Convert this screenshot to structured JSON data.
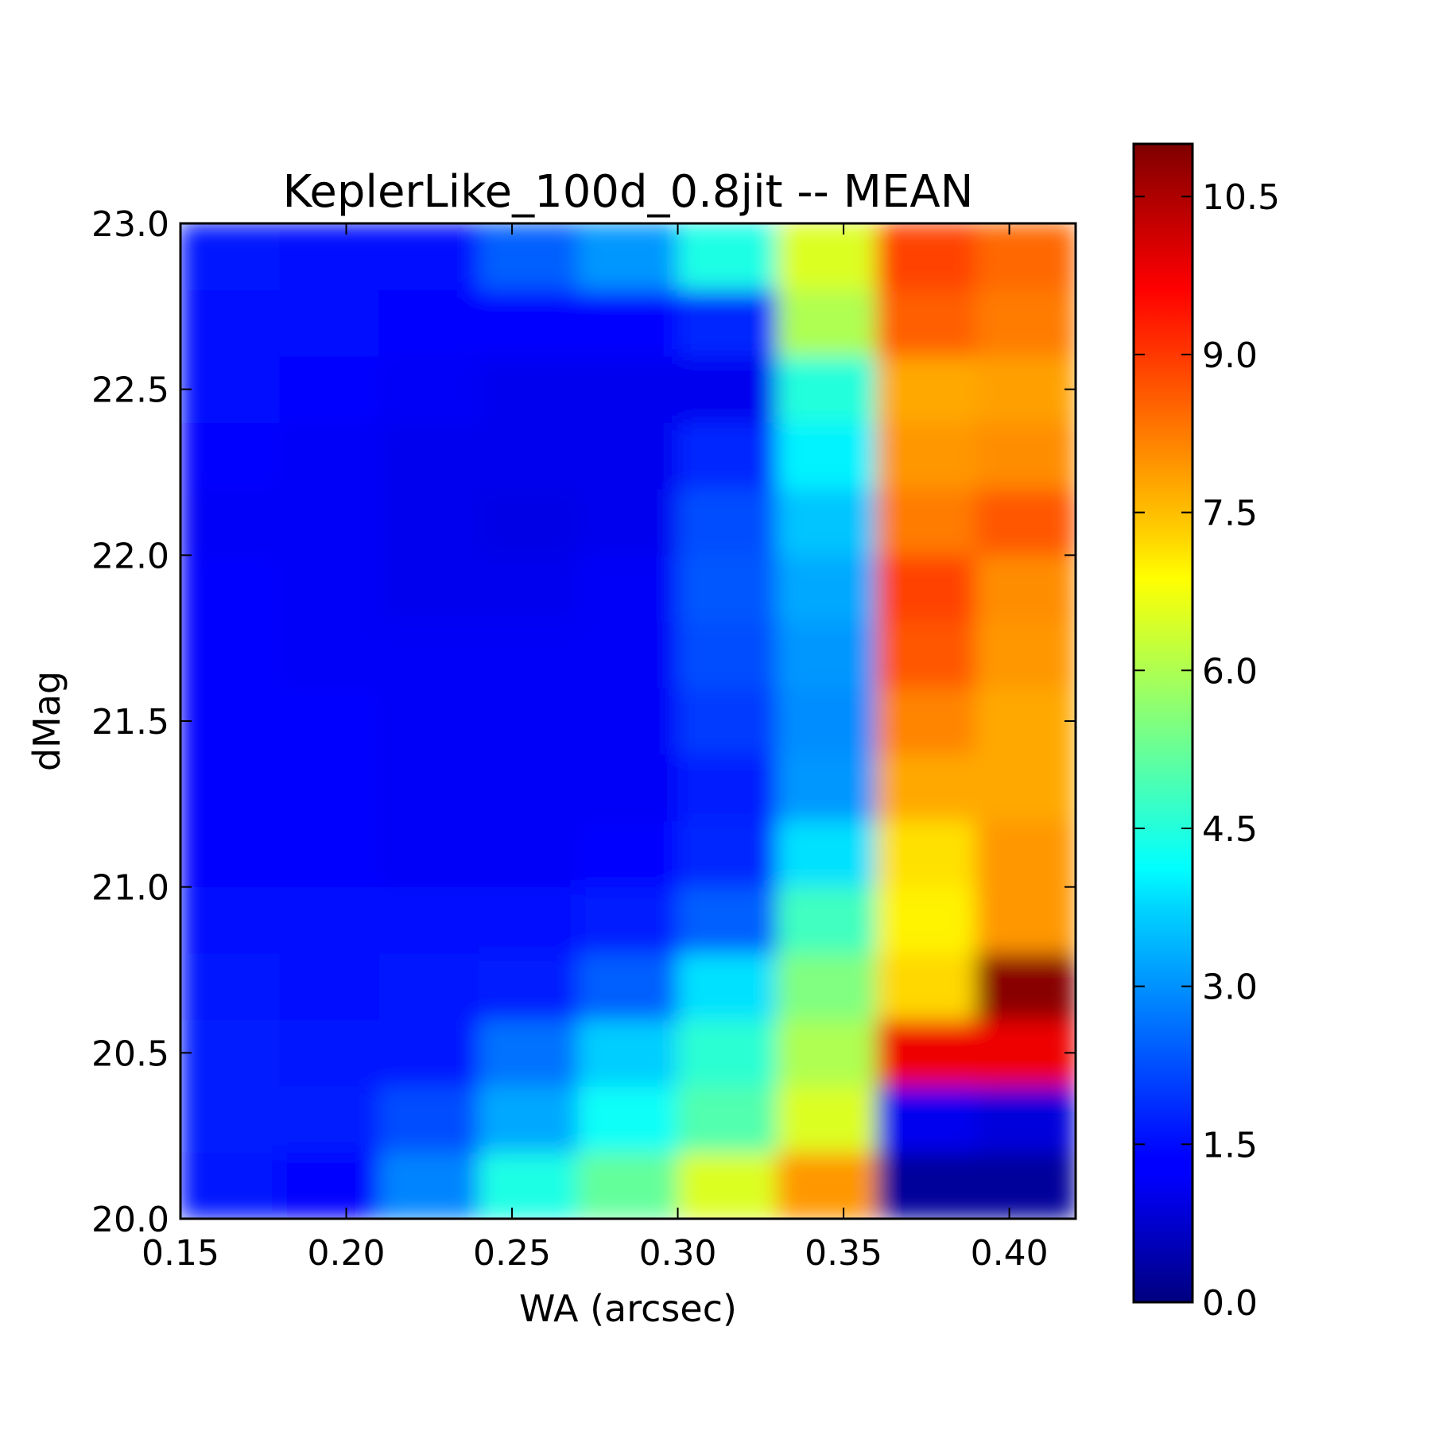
{
  "chart_data": {
    "type": "heatmap",
    "title": "KeplerLike_100d_0.8jit -- MEAN",
    "xlabel": "WA (arcsec)",
    "ylabel": "dMag",
    "xlim": [
      0.15,
      0.42
    ],
    "ylim": [
      20.0,
      23.0
    ],
    "x_ticks": [
      "0.15",
      "0.20",
      "0.25",
      "0.30",
      "0.35",
      "0.40"
    ],
    "y_ticks": [
      "20.0",
      "20.5",
      "21.0",
      "21.5",
      "22.0",
      "22.5",
      "23.0"
    ],
    "colormap": "jet",
    "color_range": [
      0.0,
      11.0
    ],
    "colorbar_ticks": [
      "0.0",
      "1.5",
      "3.0",
      "4.5",
      "6.0",
      "7.5",
      "9.0",
      "10.5"
    ],
    "x": [
      0.165,
      0.195,
      0.225,
      0.255,
      0.285,
      0.315,
      0.345,
      0.375,
      0.405
    ],
    "y": [
      20.1,
      20.3,
      20.5,
      20.7,
      20.9,
      21.1,
      21.3,
      21.5,
      21.7,
      21.9,
      22.1,
      22.3,
      22.5,
      22.7,
      22.9
    ],
    "z": [
      [
        1.6,
        1.4,
        2.8,
        4.4,
        5.2,
        6.5,
        8.0,
        0.3,
        0.3
      ],
      [
        1.7,
        1.7,
        2.2,
        3.2,
        4.2,
        5.0,
        6.5,
        1.2,
        1.0
      ],
      [
        1.7,
        1.6,
        1.6,
        2.6,
        3.6,
        4.6,
        6.0,
        9.8,
        9.8
      ],
      [
        1.6,
        1.5,
        1.6,
        1.7,
        2.4,
        3.8,
        5.5,
        7.3,
        10.9
      ],
      [
        1.5,
        1.5,
        1.5,
        1.5,
        1.7,
        2.4,
        4.8,
        7.0,
        8.0
      ],
      [
        1.4,
        1.4,
        1.3,
        1.3,
        1.4,
        1.8,
        3.8,
        7.2,
        8.0
      ],
      [
        1.4,
        1.4,
        1.3,
        1.3,
        1.3,
        1.7,
        3.0,
        7.8,
        7.8
      ],
      [
        1.4,
        1.4,
        1.3,
        1.3,
        1.3,
        2.0,
        2.9,
        8.2,
        7.8
      ],
      [
        1.4,
        1.3,
        1.3,
        1.3,
        1.3,
        2.2,
        3.0,
        8.7,
        8.0
      ],
      [
        1.4,
        1.3,
        1.2,
        1.2,
        1.3,
        2.3,
        3.2,
        8.9,
        8.1
      ],
      [
        1.3,
        1.3,
        1.2,
        1.1,
        1.2,
        2.2,
        3.5,
        8.3,
        8.7
      ],
      [
        1.4,
        1.3,
        1.2,
        1.2,
        1.2,
        1.8,
        4.0,
        8.0,
        8.1
      ],
      [
        1.5,
        1.4,
        1.3,
        1.2,
        1.2,
        1.2,
        4.5,
        7.8,
        7.9
      ],
      [
        1.5,
        1.5,
        1.4,
        1.4,
        1.4,
        1.8,
        6.0,
        8.6,
        8.3
      ],
      [
        1.6,
        1.5,
        1.5,
        2.4,
        3.0,
        4.4,
        6.5,
        8.9,
        8.5
      ]
    ]
  }
}
